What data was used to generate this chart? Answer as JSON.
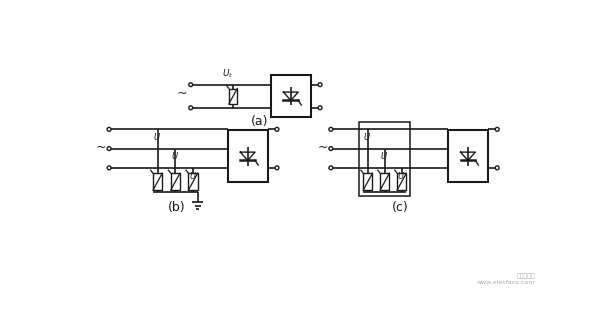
{
  "bg_color": "white",
  "line_color": "#1a1a1a",
  "label_a": "(a)",
  "label_b": "(b)",
  "label_c": "(c)",
  "fig_width": 6.02,
  "fig_height": 3.27,
  "dpi": 100
}
